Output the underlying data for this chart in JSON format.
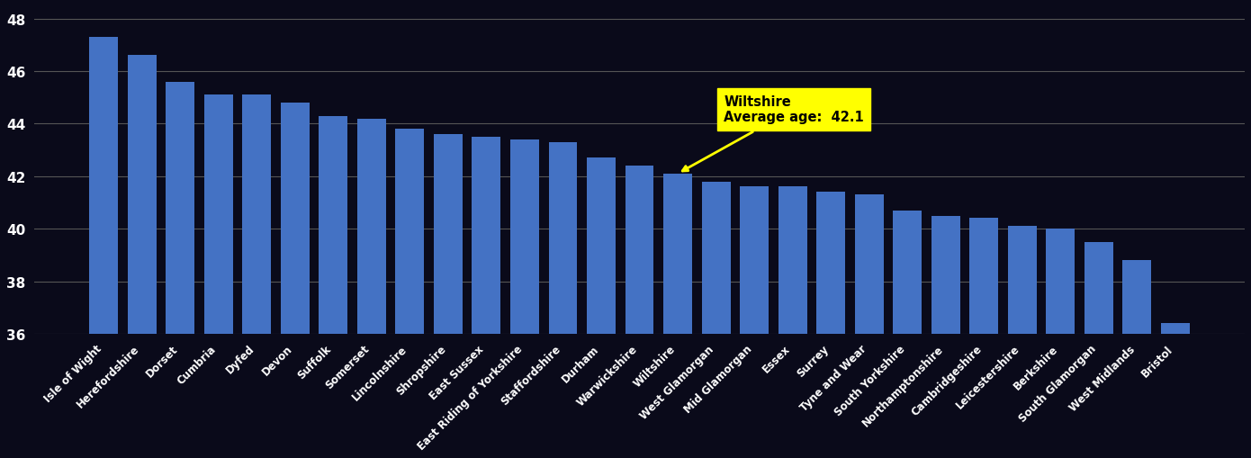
{
  "categories": [
    "Isle of Wight",
    "Herefordshire",
    "Dorset",
    "Cumbria",
    "Dyfed",
    "Devon",
    "Suffolk",
    "Somerset",
    "Lincolnshire",
    "Shropshire",
    "East Sussex",
    "East Riding of Yorkshire",
    "Staffordshire",
    "Durham",
    "Warwickshire",
    "Wiltshire",
    "West Glamorgan",
    "Mid Glamorgan",
    "Essex",
    "Surrey",
    "Tyne and Wear",
    "South Yorkshire",
    "Northamptonshire",
    "Cambridgeshire",
    "Leicestershire",
    "Berkshire",
    "South Glamorgan",
    "West Midlands",
    "Bristol"
  ],
  "values": [
    47.3,
    46.6,
    45.6,
    45.1,
    45.1,
    44.8,
    44.3,
    44.2,
    43.8,
    43.6,
    43.5,
    43.4,
    43.3,
    42.7,
    42.4,
    42.1,
    41.8,
    41.6,
    41.6,
    41.4,
    41.3,
    40.7,
    40.5,
    40.4,
    40.1,
    40.0,
    39.5,
    38.8,
    36.4
  ],
  "highlight_index": 15,
  "highlight_name": "Wiltshire",
  "highlight_value": 42.1,
  "bar_color": "#4472C4",
  "background_color": "#1a1a2e",
  "bg_color": "#0d0d0d",
  "text_color": "#ffffff",
  "grid_color": "#555555",
  "annotation_bg": "#ffff00",
  "ylim_low": 36,
  "ylim_high": 48.5,
  "yticks": [
    36,
    38,
    40,
    42,
    44,
    46,
    48
  ]
}
